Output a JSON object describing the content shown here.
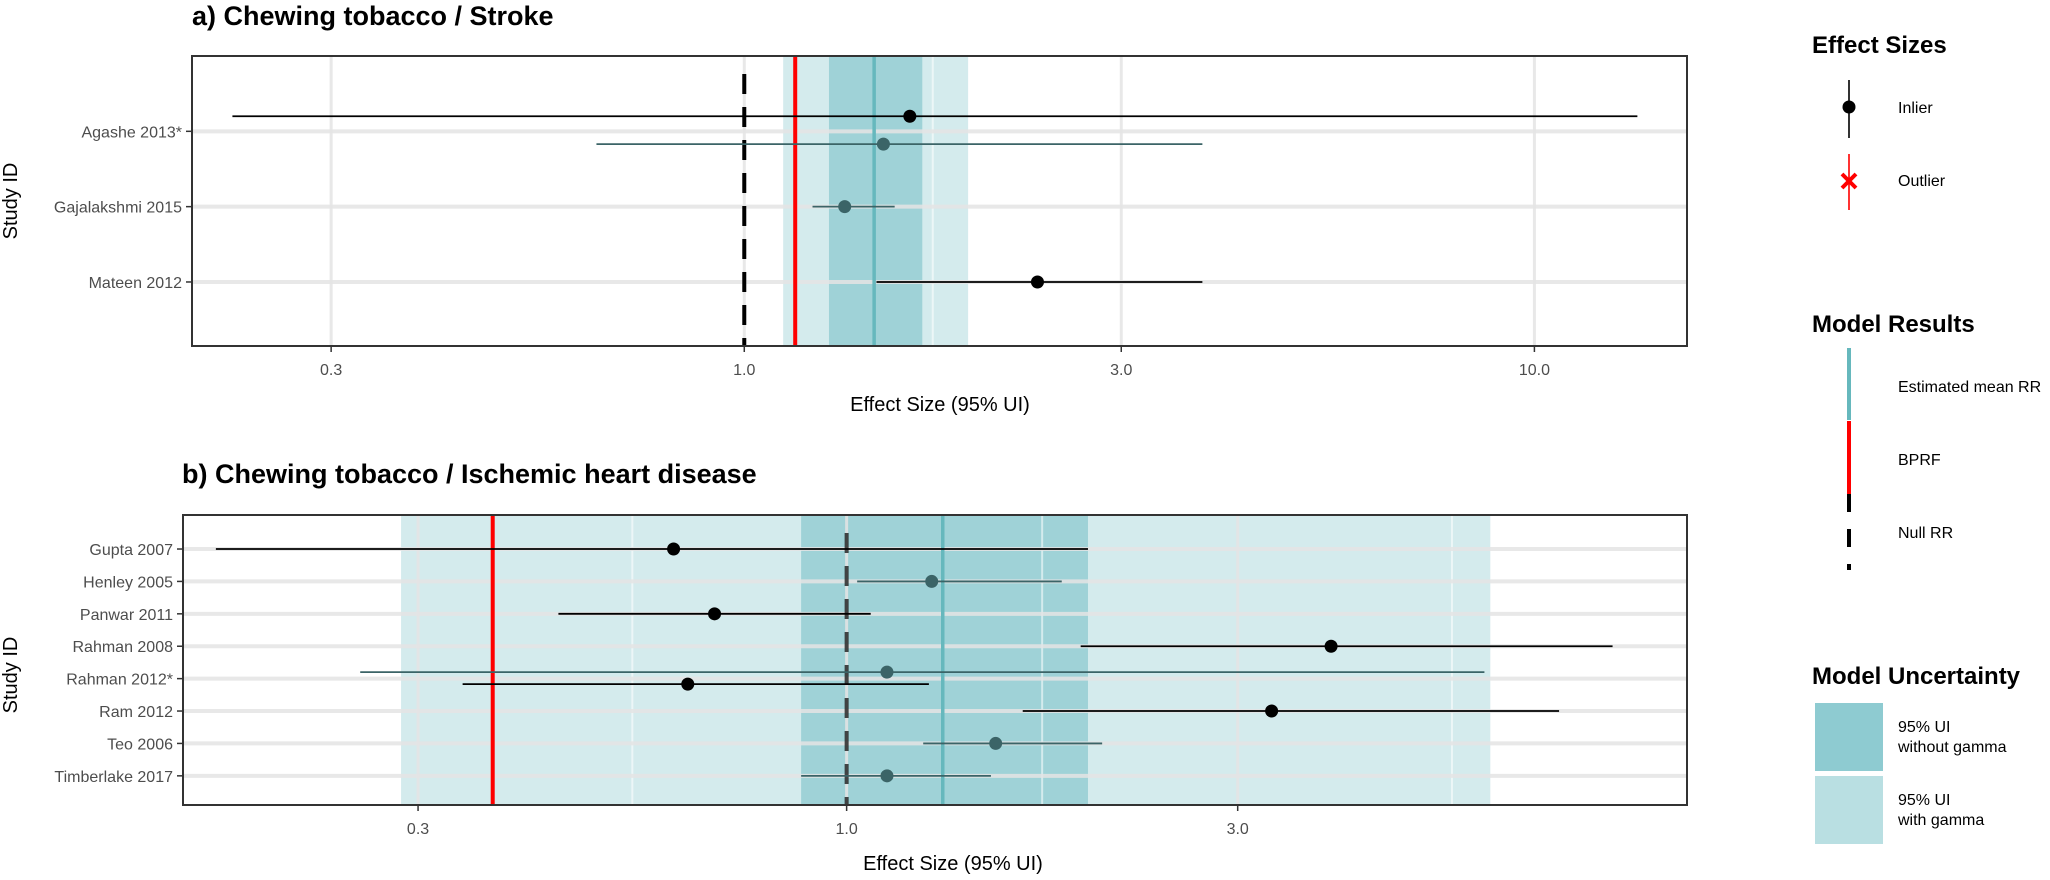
{
  "legend": {
    "effect_sizes": {
      "title": "Effect Sizes",
      "items": [
        {
          "label": "Inlier",
          "color": "#000000",
          "marker": "point"
        },
        {
          "label": "Outlier",
          "color": "#ff0000",
          "marker": "cross"
        }
      ]
    },
    "model_results": {
      "title": "Model Results",
      "items": [
        {
          "label": "Estimated mean RR",
          "color": "#66b8bd",
          "style": "solid"
        },
        {
          "label": "BPRF",
          "color": "#ff0000",
          "style": "solid"
        },
        {
          "label": "Null RR",
          "color": "#000000",
          "style": "dashed"
        }
      ]
    },
    "model_uncertainty": {
      "title": "Model Uncertainty",
      "items": [
        {
          "label_line1": "95% UI",
          "label_line2": "without gamma",
          "color": "#8ecbd1"
        },
        {
          "label_line1": "95% UI",
          "label_line2": "with gamma",
          "color": "#b9dfe2"
        }
      ]
    }
  },
  "chart_data": [
    {
      "type": "forest",
      "title": "a)  Chewing tobacco / Stroke",
      "xlabel": "Effect Size (95% UI)",
      "ylabel": "Study ID",
      "x_scale": "log",
      "xlim": [
        0.2,
        15.6
      ],
      "x_ticks": [
        {
          "value": 0.3,
          "label": "0.3"
        },
        {
          "value": 1.0,
          "label": "1.0"
        },
        {
          "value": 3.0,
          "label": "3.0"
        },
        {
          "value": 10.0,
          "label": "10.0"
        }
      ],
      "study_labels": [
        "Agashe 2013*",
        "Gajalakshmi 2015",
        "Mateen 2012"
      ],
      "ylim": [
        0.15,
        4.0
      ],
      "estimates": [
        {
          "study": "Agashe 2013*",
          "pos": 3.2,
          "est": 1.62,
          "lo": 0.225,
          "hi": 13.5,
          "color": "#000000"
        },
        {
          "study": "Agashe 2013*",
          "pos": 2.83,
          "est": 1.5,
          "lo": 0.65,
          "hi": 3.8,
          "color": "#3b6467"
        },
        {
          "study": "Gajalakshmi 2015",
          "pos": 2.0,
          "est": 1.34,
          "lo": 1.22,
          "hi": 1.55,
          "color": "#3b6467"
        },
        {
          "study": "Mateen 2012",
          "pos": 1.0,
          "est": 2.35,
          "lo": 1.47,
          "hi": 3.8,
          "color": "#000000"
        }
      ],
      "mean_rr": 1.46,
      "bprf": 1.16,
      "null_rr": 1.0,
      "ui_without_gamma": [
        1.28,
        1.68
      ],
      "ui_with_gamma": [
        1.12,
        1.92
      ]
    },
    {
      "type": "forest",
      "title": "b) Chewing tobacco / Ischemic heart disease",
      "xlabel": "Effect Size (95% UI)",
      "ylabel": "Study ID",
      "x_scale": "log",
      "xlim": [
        0.155,
        10.6
      ],
      "x_ticks": [
        {
          "value": 0.3,
          "label": "0.3"
        },
        {
          "value": 1.0,
          "label": "1.0"
        },
        {
          "value": 3.0,
          "label": "3.0"
        }
      ],
      "study_labels": [
        "Gupta 2007",
        "Henley 2005",
        "Panwar 2011",
        "Rahman 2008",
        "Rahman 2012*",
        "Ram 2012",
        "Teo 2006",
        "Timberlake 2017"
      ],
      "ylim": [
        0.1,
        9.05
      ],
      "estimates": [
        {
          "study": "Gupta 2007",
          "pos": 8.0,
          "est": 0.615,
          "lo": 0.17,
          "hi": 1.97,
          "color": "#000000"
        },
        {
          "study": "Henley 2005",
          "pos": 7.0,
          "est": 1.27,
          "lo": 1.03,
          "hi": 1.83,
          "color": "#3b6467"
        },
        {
          "study": "Panwar 2011",
          "pos": 6.0,
          "est": 0.69,
          "lo": 0.445,
          "hi": 1.07,
          "color": "#000000"
        },
        {
          "study": "Rahman 2008",
          "pos": 5.0,
          "est": 3.9,
          "lo": 1.93,
          "hi": 8.6,
          "color": "#000000"
        },
        {
          "study": "Rahman 2012*",
          "pos": 4.2,
          "est": 1.12,
          "lo": 0.255,
          "hi": 6.0,
          "color": "#3b6467"
        },
        {
          "study": "Rahman 2012*",
          "pos": 3.83,
          "est": 0.64,
          "lo": 0.34,
          "hi": 1.26,
          "color": "#000000"
        },
        {
          "study": "Ram 2012",
          "pos": 3.0,
          "est": 3.3,
          "lo": 1.64,
          "hi": 7.4,
          "color": "#000000"
        },
        {
          "study": "Teo 2006",
          "pos": 2.0,
          "est": 1.52,
          "lo": 1.24,
          "hi": 2.05,
          "color": "#3b6467"
        },
        {
          "study": "Timberlake 2017",
          "pos": 1.0,
          "est": 1.12,
          "lo": 0.88,
          "hi": 1.5,
          "color": "#3b6467"
        }
      ],
      "mean_rr": 1.31,
      "bprf": 0.37,
      "null_rr": 1.0,
      "ui_without_gamma": [
        0.88,
        1.97
      ],
      "ui_with_gamma": [
        0.286,
        6.1
      ]
    }
  ]
}
